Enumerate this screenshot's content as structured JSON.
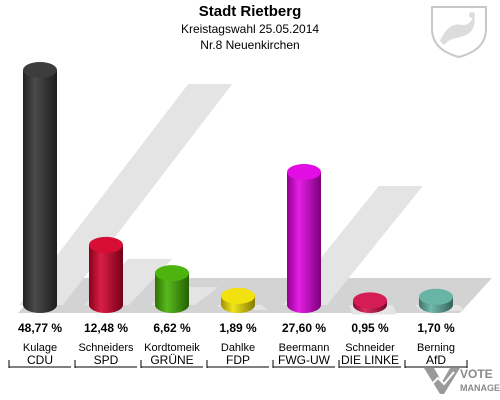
{
  "header": {
    "title": "Stadt Rietberg",
    "subtitle": "Kreistagswahl 25.05.2014",
    "district": "Nr.8 Neuenkirchen"
  },
  "logo": {
    "line1": "VOTE",
    "line2": "MANAGER"
  },
  "chart_data": {
    "type": "bar",
    "title": "Stadt Rietberg",
    "categories": [
      "Kulage",
      "Schneiders",
      "Kordtomeik",
      "Dahlke",
      "Beermann",
      "Schneider",
      "Berning"
    ],
    "parties": [
      "CDU",
      "SPD",
      "GRÜNE",
      "FDP",
      "FWG-UW",
      "DIE LINKE",
      "AfD"
    ],
    "values": [
      48.77,
      12.48,
      6.62,
      1.89,
      27.6,
      0.95,
      1.7
    ],
    "value_labels": [
      "48,77 %",
      "12,48 %",
      "6,62 %",
      "1,89 %",
      "27,60 %",
      "0,95 %",
      "1,70 %"
    ],
    "colors": [
      "#333333",
      "#d4002a",
      "#44b000",
      "#f0e000",
      "#e000e0",
      "#d4104c",
      "#60b0a0"
    ],
    "ylim": [
      0,
      50
    ],
    "grid": false
  }
}
